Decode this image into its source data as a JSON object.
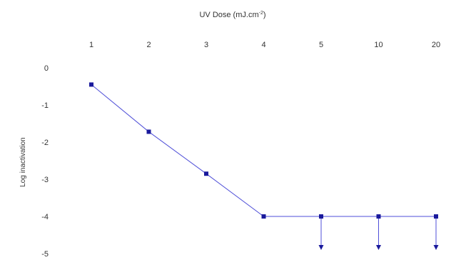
{
  "chart_data": {
    "type": "line",
    "title": "",
    "xlabel": "UV Dose (mJ.cm",
    "xlabel_superscript": "-2",
    "xlabel_suffix": ")",
    "ylabel": "Log inactivation",
    "categories": [
      "1",
      "2",
      "3",
      "4",
      "5",
      "10",
      "20"
    ],
    "y_ticks": [
      "0",
      "-1",
      "-2",
      "-3",
      "-4",
      "-5"
    ],
    "ylim": [
      -5,
      0
    ],
    "x_axis_position": "top",
    "grid": false,
    "legend": "none",
    "series": [
      {
        "values": [
          -0.45,
          -1.72,
          -2.85,
          -4.0,
          -4.0,
          -4.0,
          -4.0
        ],
        "color": "#4f4fd8",
        "marker_color": "#1a1a9c"
      }
    ],
    "below_detection_arrows": [
      {
        "category": "5",
        "from": -4.0,
        "to": -5.0
      },
      {
        "category": "10",
        "from": -4.0,
        "to": -5.0
      },
      {
        "category": "20",
        "from": -4.0,
        "to": -5.0
      }
    ]
  }
}
